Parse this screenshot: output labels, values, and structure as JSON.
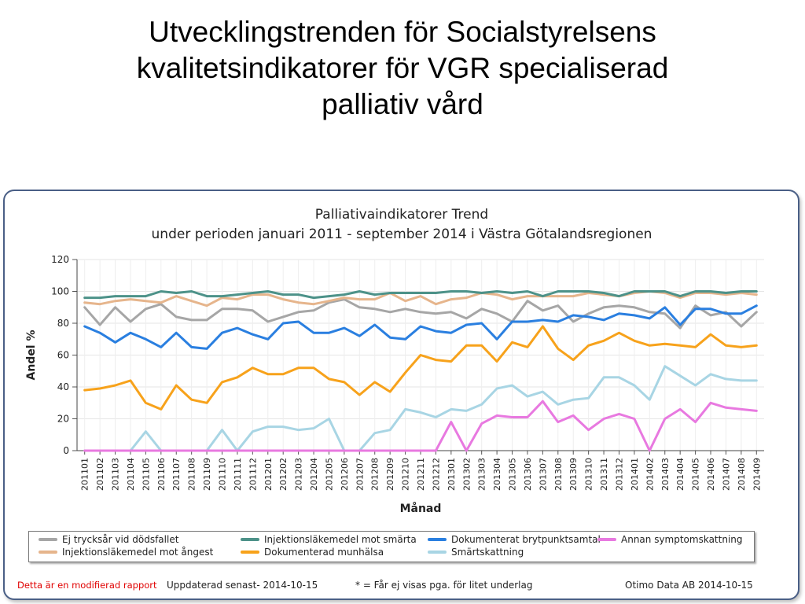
{
  "slide": {
    "title_lines": [
      "Utvecklingstrenden för Socialstyrelsens",
      "kvalitetsindikatorer för VGR specialiserad",
      "palliativ vård"
    ]
  },
  "footer": {
    "modified_note": "Detta är en modifierad rapport",
    "updated": "Uppdaterad senast- 2014-10-15",
    "note": "* = Får ej visas pga. för litet underlag",
    "credit": "Otimo Data AB 2014-10-15"
  },
  "chart_data": {
    "type": "line",
    "title": "Palliativaindikatorer Trend",
    "subtitle": "under perioden januari 2011 - september 2014 i    Västra Götalandsregionen",
    "xlabel": "Månad",
    "ylabel": "Andel %",
    "ylim": [
      0,
      120
    ],
    "yticks": [
      0,
      20,
      40,
      60,
      80,
      100,
      120
    ],
    "grid": true,
    "legend_position": "bottom",
    "x": [
      "201101",
      "201102",
      "201103",
      "201104",
      "201105",
      "201106",
      "201107",
      "201108",
      "201109",
      "201110",
      "201111",
      "201112",
      "201201",
      "201202",
      "201203",
      "201204",
      "201205",
      "201206",
      "201207",
      "201208",
      "201209",
      "201210",
      "201211",
      "201212",
      "201301",
      "201302",
      "201303",
      "201304",
      "201305",
      "201306",
      "201307",
      "201308",
      "201309",
      "201310",
      "201311",
      "201312",
      "201401",
      "201402",
      "201403",
      "201404",
      "201405",
      "201406",
      "201407",
      "201408",
      "201409"
    ],
    "series": [
      {
        "name": "Ej trycksår vid dödsfallet",
        "color": "#a6a6a6",
        "values": [
          90,
          79,
          90,
          81,
          89,
          92,
          84,
          82,
          82,
          89,
          89,
          88,
          81,
          84,
          87,
          88,
          93,
          95,
          90,
          89,
          87,
          89,
          87,
          86,
          87,
          83,
          89,
          86,
          81,
          94,
          88,
          91,
          81,
          86,
          90,
          91,
          90,
          87,
          86,
          77,
          91,
          85,
          87,
          78,
          87
        ]
      },
      {
        "name": "Injektionsläkemedel mot ångest",
        "color": "#e6b58c",
        "values": [
          93,
          92,
          94,
          95,
          94,
          93,
          97,
          94,
          91,
          96,
          95,
          98,
          98,
          95,
          93,
          92,
          94,
          96,
          95,
          95,
          99,
          94,
          97,
          92,
          95,
          96,
          99,
          98,
          95,
          97,
          97,
          97,
          97,
          99,
          98,
          97,
          99,
          100,
          99,
          96,
          99,
          99,
          98,
          99,
          98
        ]
      },
      {
        "name": "Injektionsläkemedel mot smärta",
        "color": "#4d9289",
        "values": [
          96,
          96,
          97,
          97,
          97,
          100,
          99,
          100,
          97,
          97,
          98,
          99,
          100,
          98,
          98,
          96,
          97,
          98,
          100,
          98,
          99,
          99,
          99,
          99,
          100,
          100,
          99,
          100,
          99,
          100,
          97,
          100,
          100,
          100,
          99,
          97,
          100,
          100,
          100,
          97,
          100,
          100,
          99,
          100,
          100
        ]
      },
      {
        "name": "Dokumenterad munhälsa",
        "color": "#f7a21b",
        "values": [
          38,
          39,
          41,
          44,
          30,
          26,
          41,
          32,
          30,
          43,
          46,
          52,
          48,
          48,
          52,
          52,
          45,
          43,
          35,
          43,
          37,
          49,
          60,
          57,
          56,
          66,
          66,
          56,
          68,
          65,
          78,
          64,
          57,
          66,
          69,
          74,
          69,
          66,
          67,
          66,
          65,
          73,
          66,
          65,
          66
        ]
      },
      {
        "name": "Dokumenterat brytpunktsamtal",
        "color": "#2a7fe0",
        "values": [
          78,
          74,
          68,
          74,
          70,
          65,
          74,
          65,
          64,
          74,
          77,
          73,
          70,
          80,
          81,
          74,
          74,
          77,
          72,
          79,
          71,
          70,
          78,
          75,
          74,
          79,
          80,
          70,
          81,
          81,
          82,
          81,
          85,
          84,
          82,
          86,
          85,
          83,
          90,
          79,
          89,
          89,
          86,
          86,
          91
        ]
      },
      {
        "name": "Smärtskattning",
        "color": "#a8d5e4",
        "values": [
          0,
          0,
          0,
          0,
          12,
          0,
          0,
          0,
          0,
          13,
          0,
          12,
          15,
          15,
          13,
          14,
          20,
          0,
          0,
          11,
          13,
          26,
          24,
          21,
          26,
          25,
          29,
          39,
          41,
          34,
          37,
          29,
          32,
          33,
          46,
          46,
          41,
          32,
          53,
          47,
          41,
          48,
          45,
          44,
          44
        ]
      },
      {
        "name": "Annan symptomskattning",
        "color": "#e879e0",
        "values": [
          0,
          0,
          0,
          0,
          0,
          0,
          0,
          0,
          0,
          0,
          0,
          0,
          0,
          0,
          0,
          0,
          0,
          0,
          0,
          0,
          0,
          0,
          0,
          0,
          18,
          0,
          17,
          22,
          21,
          21,
          31,
          18,
          22,
          13,
          20,
          23,
          20,
          0,
          20,
          26,
          18,
          30,
          27,
          26,
          25
        ]
      }
    ]
  }
}
